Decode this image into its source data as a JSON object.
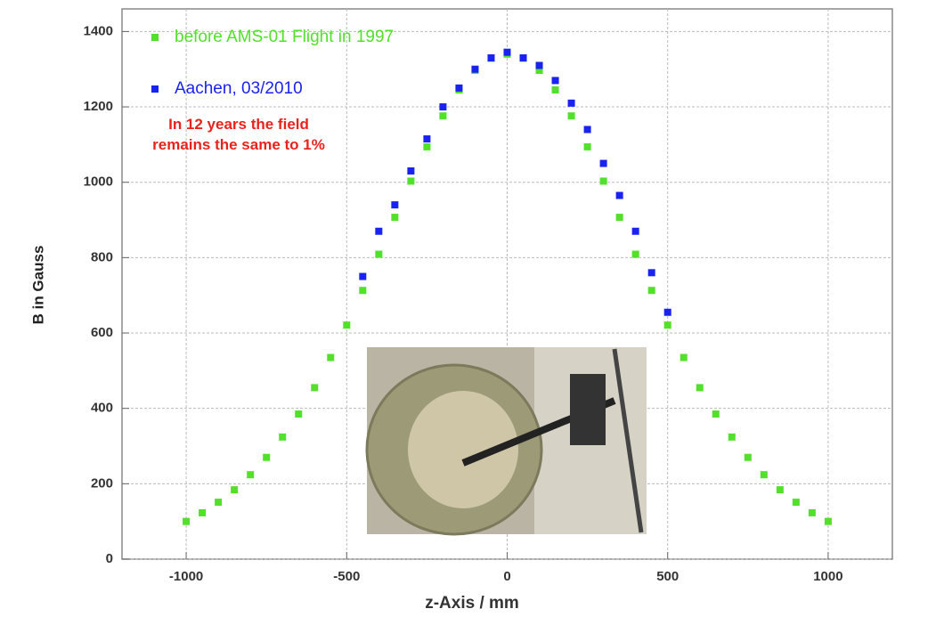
{
  "chart_data": {
    "type": "scatter",
    "x_label": "z-Axis / mm",
    "y_label": "B in Gauss",
    "annotation": "In 12 years the field remains the same to 1%",
    "xlim": [
      -1200,
      1200
    ],
    "xticks": [
      -1000,
      -500,
      0,
      500,
      1000
    ],
    "ylim": [
      0,
      1460
    ],
    "yticks": [
      0,
      200,
      400,
      600,
      800,
      1000,
      1200,
      1400
    ],
    "grid": true,
    "legend": "upper left",
    "series": [
      {
        "name": "before AMS-01 Flight in 1997",
        "color": "#52e02a",
        "x": [
          -1000,
          -950,
          -900,
          -850,
          -800,
          -750,
          -700,
          -650,
          -600,
          -550,
          -500,
          -450,
          -400,
          -350,
          -300,
          -250,
          -200,
          -150,
          -100,
          -50,
          0,
          50,
          100,
          150,
          200,
          250,
          300,
          350,
          400,
          450,
          500,
          550,
          600,
          650,
          700,
          750,
          800,
          850,
          900,
          950,
          1000
        ],
        "values": [
          100,
          123,
          151,
          184,
          224,
          270,
          324,
          385,
          455,
          535,
          621,
          713,
          809,
          907,
          1003,
          1094,
          1176,
          1245,
          1297,
          1329,
          1340,
          1329,
          1297,
          1245,
          1176,
          1094,
          1003,
          907,
          809,
          713,
          621,
          535,
          455,
          385,
          324,
          270,
          224,
          184,
          151,
          123,
          100
        ]
      },
      {
        "name": "Aachen, 03/2010",
        "color": "#1a22f0",
        "x": [
          -450,
          -400,
          -350,
          -300,
          -250,
          -200,
          -150,
          -100,
          -50,
          0,
          50,
          100,
          150,
          200,
          250,
          300,
          350,
          400,
          450,
          500
        ],
        "values": [
          750,
          870,
          940,
          1030,
          1115,
          1200,
          1250,
          1300,
          1330,
          1345,
          1330,
          1310,
          1270,
          1210,
          1140,
          1050,
          965,
          870,
          760,
          655
        ]
      }
    ]
  }
}
